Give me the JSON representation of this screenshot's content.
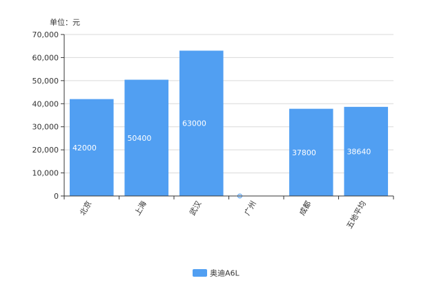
{
  "chart_data": {
    "type": "bar",
    "unit_label": "单位：元",
    "categories": [
      "北京",
      "上海",
      "武汉",
      "广州",
      "成都",
      "五地平均"
    ],
    "series": [
      {
        "name": "奥迪A6L",
        "values": [
          42000,
          50400,
          63000,
          0,
          37800,
          38640
        ],
        "data_labels": [
          "42000",
          "50400",
          "63000",
          "0",
          "37800",
          "38640"
        ],
        "color": "#519ff2"
      }
    ],
    "ylim": [
      0,
      70000
    ],
    "y_ticks": [
      0,
      10000,
      20000,
      30000,
      40000,
      50000,
      60000,
      70000
    ],
    "y_tick_labels": [
      "0",
      "10,000",
      "20,000",
      "30,000",
      "40,000",
      "50,000",
      "60,000",
      "70,000"
    ],
    "grid": true,
    "legend_position": "bottom-center"
  }
}
